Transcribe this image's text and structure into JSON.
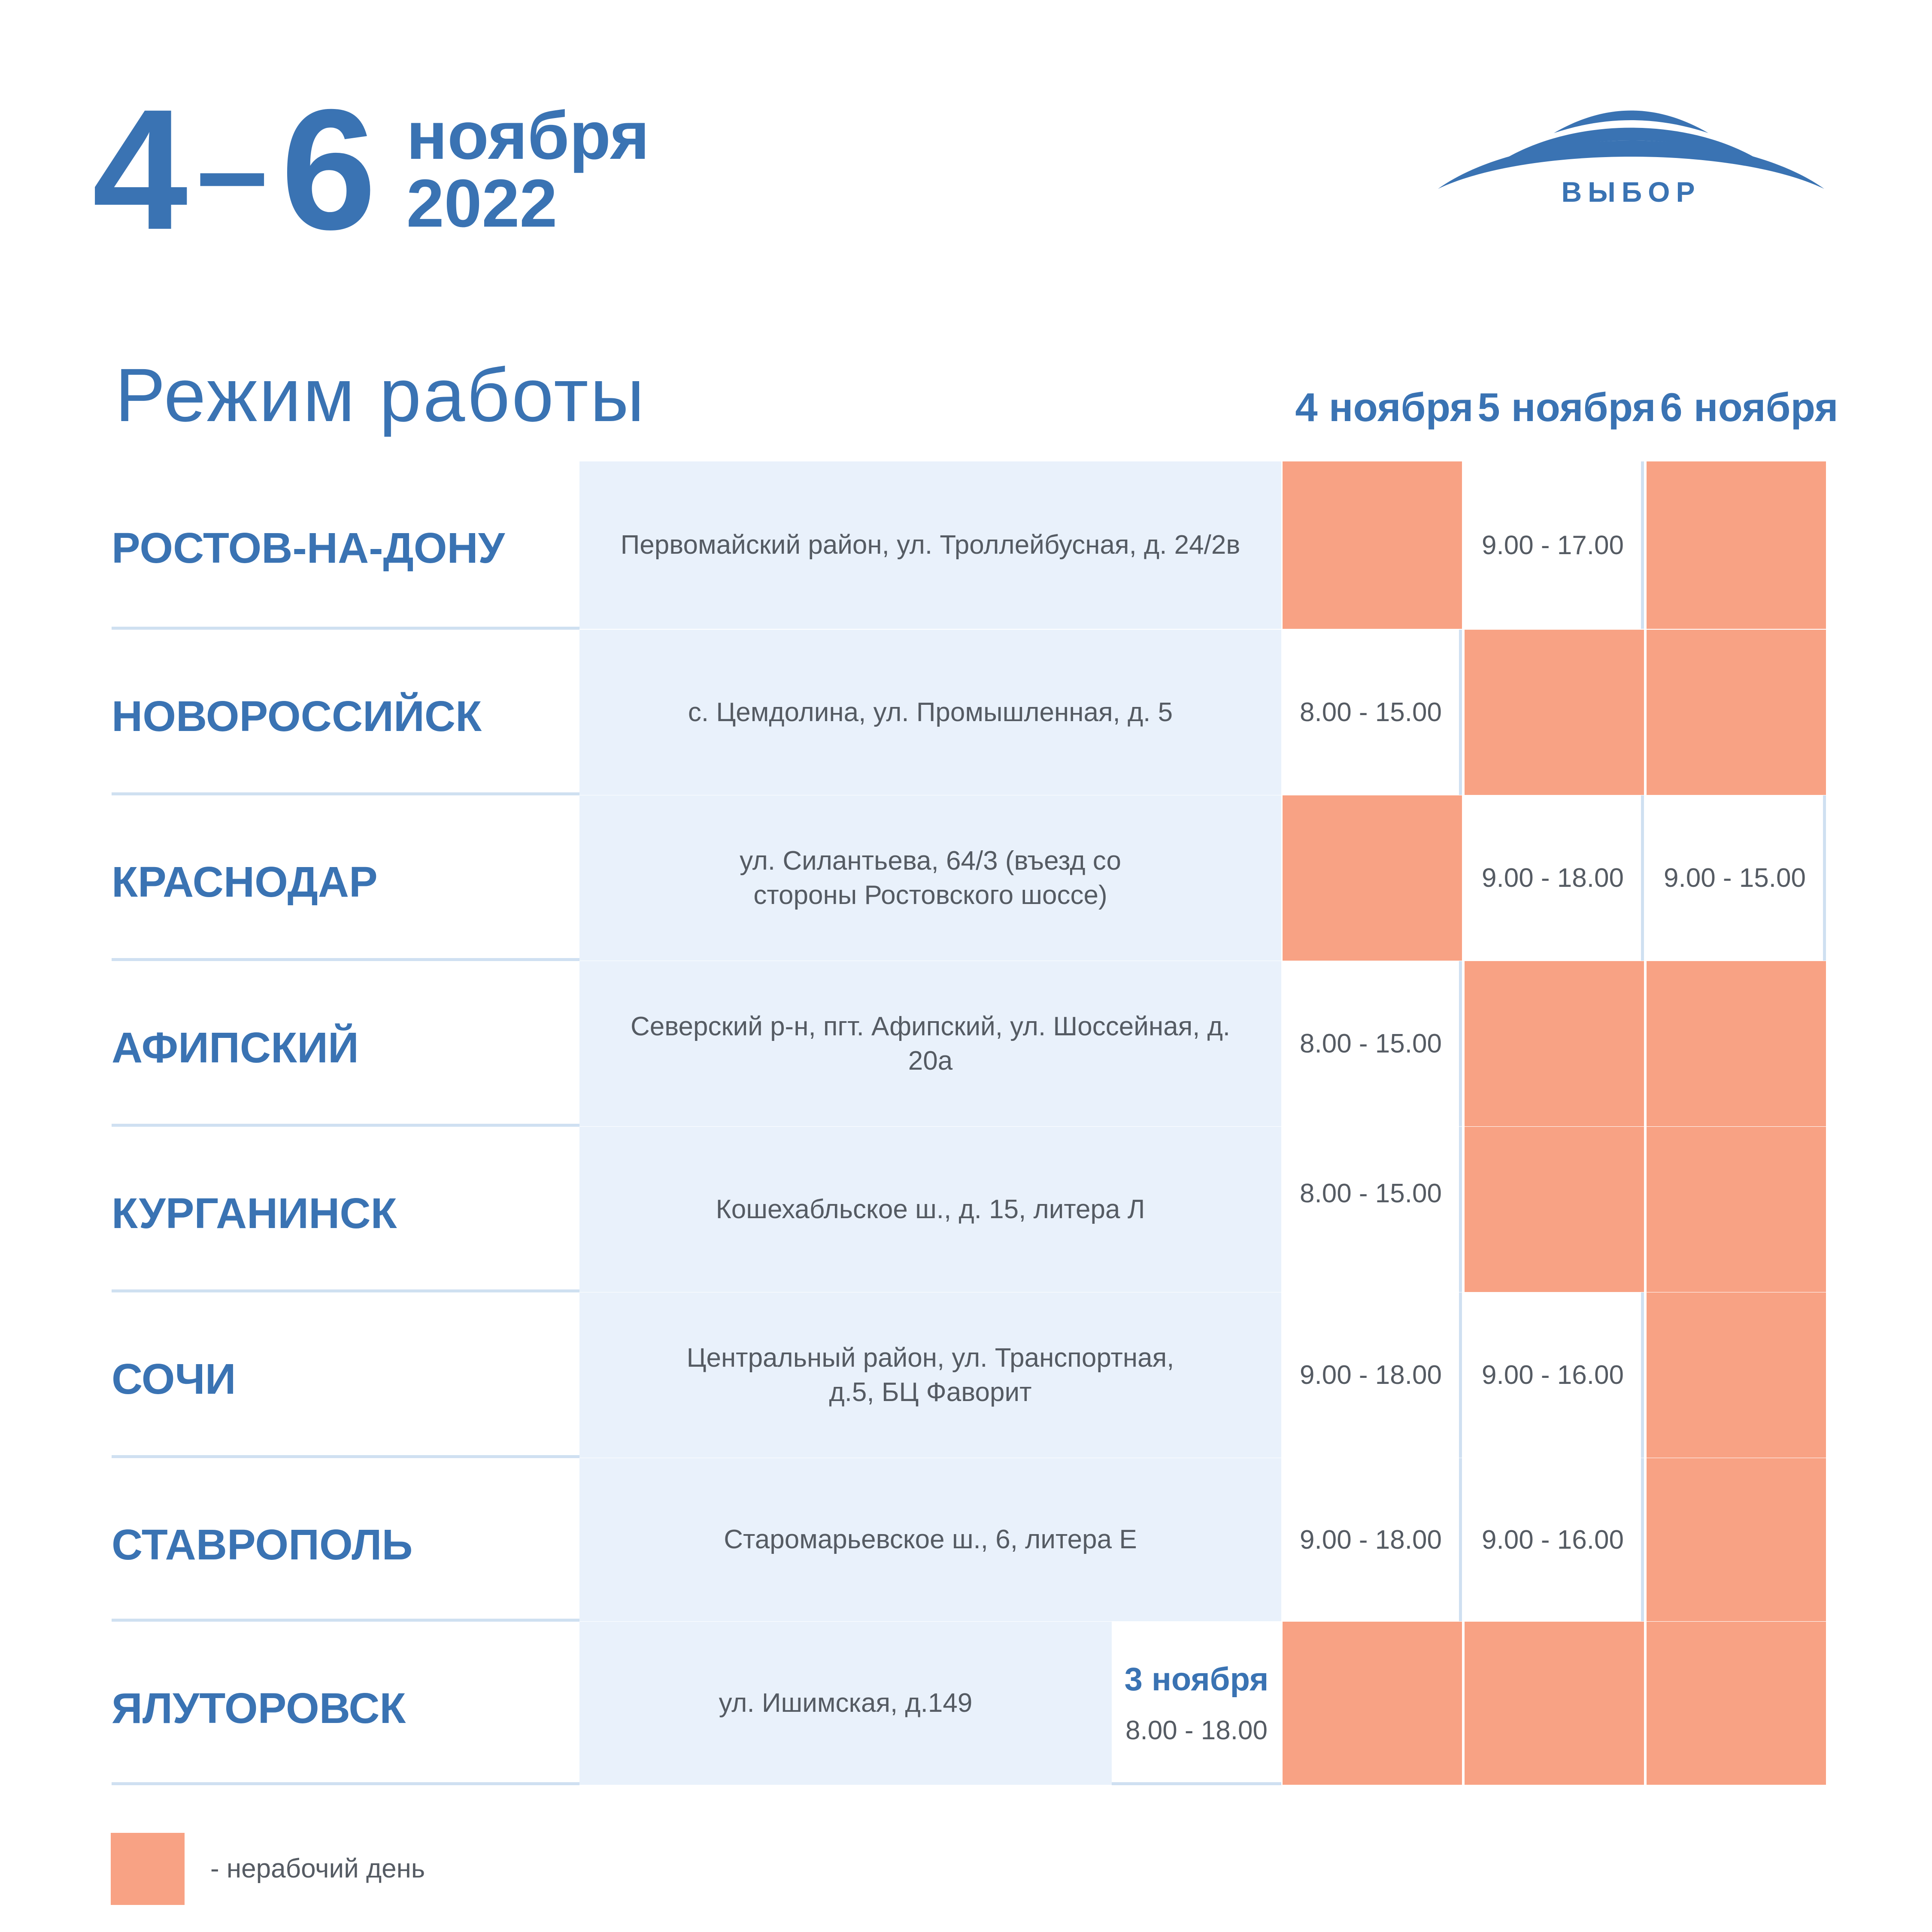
{
  "header": {
    "date_from": "4",
    "date_dash": "–",
    "date_to": "6",
    "month": "ноября",
    "year": "2022"
  },
  "logo": {
    "text": "ВЫБОР",
    "color": "#3a73b3"
  },
  "title": "Режим работы",
  "days": [
    "4 ноября",
    "5 ноября",
    "6 ноября"
  ],
  "colors": {
    "accent": "#3a73b3",
    "address_bg": "#e9f1fb",
    "non_working": "#f8a284",
    "separator": "#cfe0f1"
  },
  "rows": [
    {
      "city": "РОСТОВ-НА-ДОНУ",
      "address": "Первомайский район, ул. Троллейбусная, д. 24/2в",
      "hours": [
        "",
        "9.00 - 17.00",
        ""
      ]
    },
    {
      "city": "НОВОРОССИЙСК",
      "address": "с. Цемдолина, ул. Промышленная, д. 5",
      "hours": [
        "8.00 - 15.00",
        "",
        ""
      ]
    },
    {
      "city": "КРАСНОДАР",
      "address": "ул. Силантьева, 64/3 (въезд со стороны Ростовского шоссе)",
      "hours": [
        "",
        "9.00 - 18.00",
        "9.00 - 15.00"
      ]
    },
    {
      "city": "АФИПСКИЙ",
      "address": "Северский р-н, пгт. Афипский, ул. Шоссейная, д. 20а",
      "hours": [
        "8.00 - 15.00",
        "",
        ""
      ]
    },
    {
      "city": "КУРГАНИНСК",
      "address": "Кошехабльское ш., д. 15, литера Л",
      "hours": [
        "8.00 - 15.00",
        "",
        ""
      ]
    },
    {
      "city": "СОЧИ",
      "address": "Центральный район, ул. Транспортная, д.5, БЦ Фаворит",
      "hours": [
        "9.00 - 18.00",
        "9.00 - 16.00",
        ""
      ]
    },
    {
      "city": "СТАВРОПОЛЬ",
      "address": "Старомарьевское ш., 6, литера Е",
      "hours": [
        "9.00 - 18.00",
        "9.00 - 16.00",
        ""
      ]
    },
    {
      "city": "ЯЛУТОРОВСК",
      "address": "ул. Ишимская, д.149",
      "hours": [
        "",
        "",
        ""
      ],
      "special": {
        "day": "3 ноября",
        "hours": "8.00 - 18.00"
      }
    }
  ],
  "legend": {
    "text": "- нерабочий день"
  }
}
